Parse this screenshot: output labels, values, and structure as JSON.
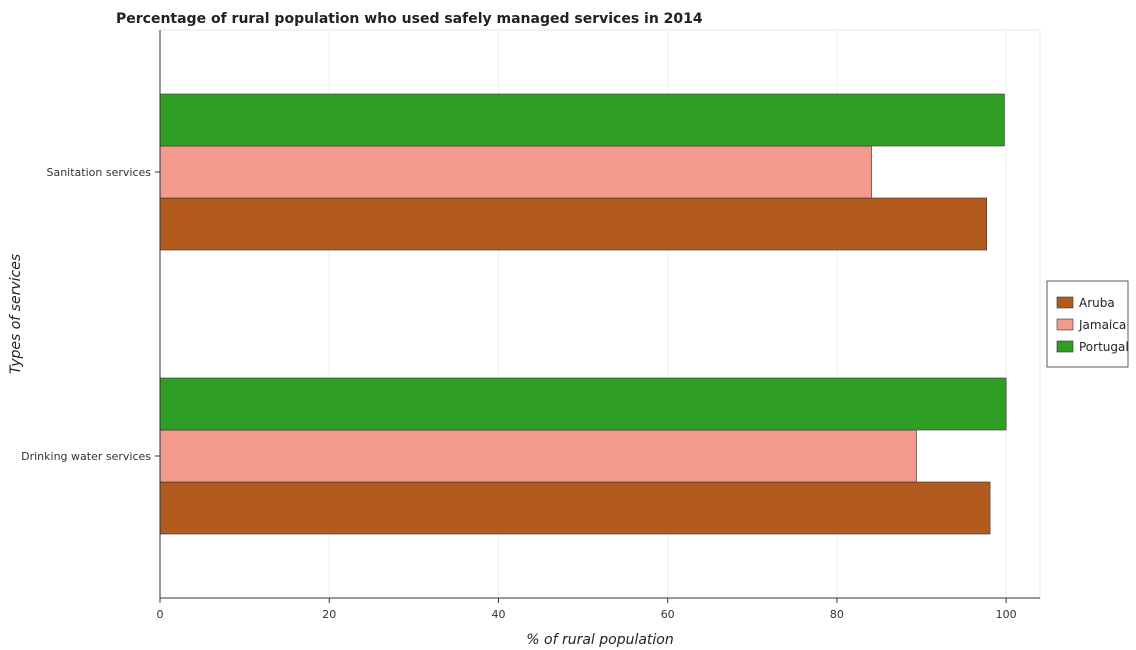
{
  "colors": {
    "Aruba": "#b35a1f",
    "Jamaica": "#f29a8c",
    "Portugal": "#2e9e24",
    "edge": "#333333",
    "grid": "#eeeeee"
  },
  "chart_data": {
    "type": "bar",
    "orientation": "horizontal",
    "title": "Percentage of rural population who used safely managed services in 2014",
    "xlabel": "% of rural population",
    "ylabel": "Types of services",
    "xlim": [
      0,
      104
    ],
    "xticks": [
      0,
      20,
      40,
      60,
      80,
      100
    ],
    "categories": [
      "Sanitation services",
      "Drinking water services"
    ],
    "series": [
      {
        "name": "Aruba",
        "values": [
          97.7,
          98.1
        ]
      },
      {
        "name": "Jamaica",
        "values": [
          84.1,
          89.4
        ]
      },
      {
        "name": "Portugal",
        "values": [
          99.8,
          100
        ]
      }
    ],
    "legend": "right",
    "grid": true
  }
}
